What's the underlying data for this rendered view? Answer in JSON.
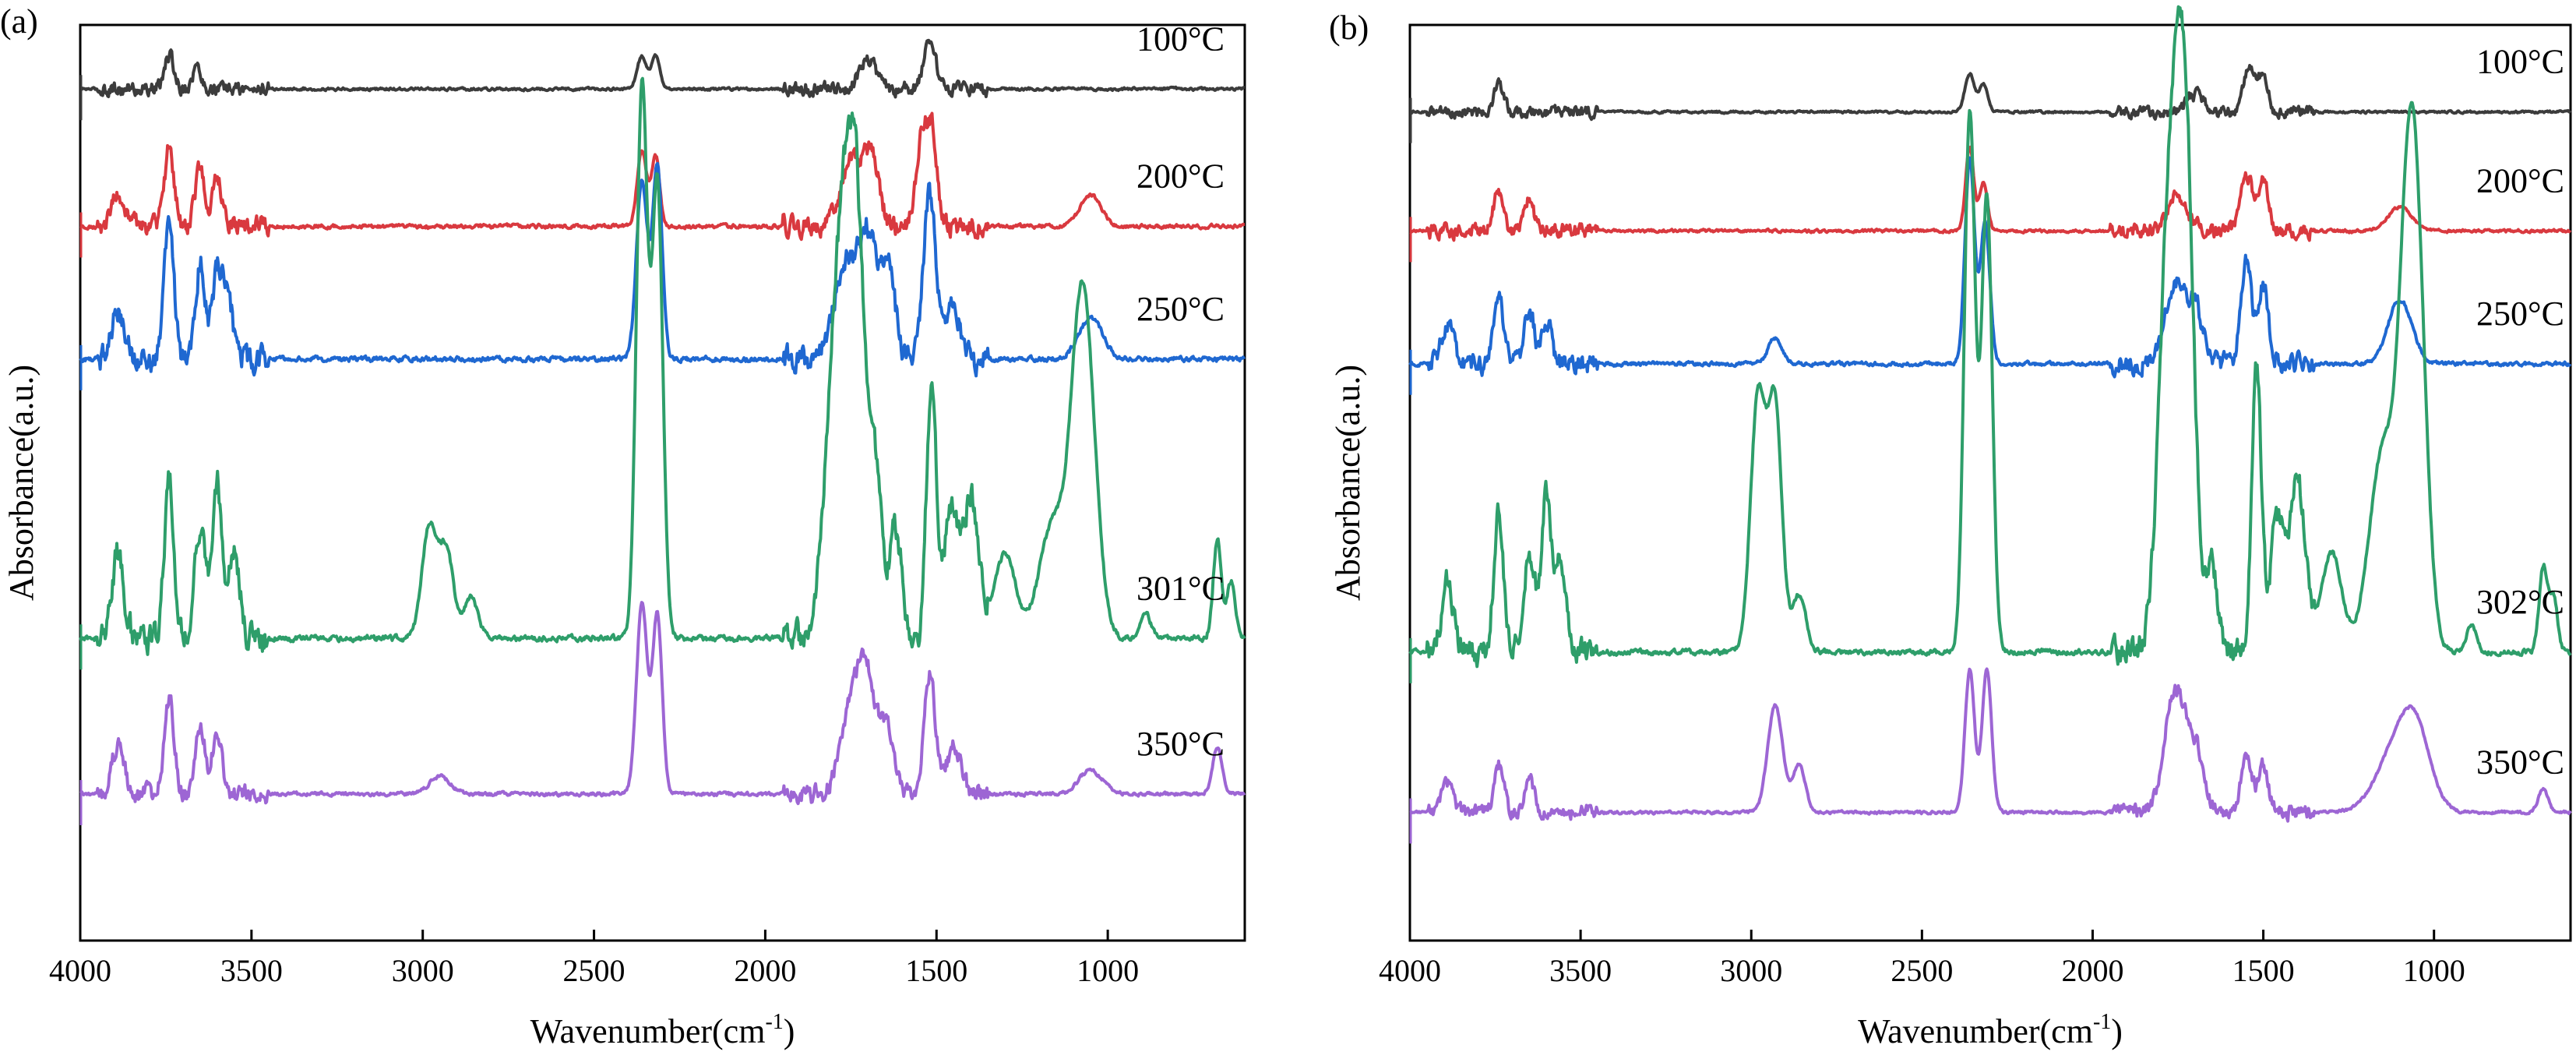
{
  "chart_data": [
    {
      "type": "line",
      "panel_label": "(a)",
      "xlabel": "Wavenumber(cm",
      "xlabel_sup": "-1",
      "xlabel_close": ")",
      "ylabel": "Absorbance(a.u.)",
      "xlim": [
        4000,
        600
      ],
      "xticks": [
        "4000",
        "3500",
        "3000",
        "2500",
        "2000",
        "1500",
        "1000"
      ],
      "xtick_values": [
        4000,
        3500,
        3000,
        2500,
        2000,
        1500,
        1000
      ],
      "yticks": "none",
      "series": [
        {
          "name": "100°C",
          "color": "#3c3c3c",
          "baseline": 0.93,
          "scale": 0.12,
          "noise": 0.12,
          "peaks": [
            [
              3740,
              0.3,
              14
            ],
            [
              3660,
              0.2,
              12
            ],
            [
              2360,
              0.3,
              14
            ],
            [
              2320,
              0.3,
              12
            ],
            [
              1700,
              0.25,
              25
            ],
            [
              1520,
              0.4,
              18
            ]
          ]
        },
        {
          "name": "200°C",
          "color": "#d9393f",
          "baseline": 0.78,
          "scale": 0.14,
          "noise": 0.15,
          "peaks": [
            [
              3890,
              0.25,
              18
            ],
            [
              3740,
              0.6,
              14
            ],
            [
              3650,
              0.45,
              14
            ],
            [
              3600,
              0.35,
              14
            ],
            [
              2360,
              0.6,
              14
            ],
            [
              2320,
              0.55,
              12
            ],
            [
              1750,
              0.5,
              28
            ],
            [
              1690,
              0.55,
              22
            ],
            [
              1540,
              0.7,
              18
            ],
            [
              1510,
              0.6,
              14
            ],
            [
              1050,
              0.25,
              30
            ]
          ]
        },
        {
          "name": "250°C",
          "color": "#1f68d1",
          "baseline": 0.635,
          "scale": 0.15,
          "noise": 0.18,
          "peaks": [
            [
              3890,
              0.35,
              20
            ],
            [
              3740,
              1.0,
              14
            ],
            [
              3650,
              0.7,
              14
            ],
            [
              3600,
              0.65,
              14
            ],
            [
              3570,
              0.5,
              14
            ],
            [
              2360,
              1.3,
              16
            ],
            [
              2315,
              1.4,
              14
            ],
            [
              1770,
              0.7,
              30
            ],
            [
              1700,
              0.9,
              28
            ],
            [
              1640,
              0.6,
              20
            ],
            [
              1520,
              1.2,
              18
            ],
            [
              1450,
              0.4,
              20
            ],
            [
              1050,
              0.3,
              35
            ]
          ]
        },
        {
          "name": "301°C",
          "color": "#2e9e6a",
          "baseline": 0.33,
          "scale": 0.155,
          "noise": 0.2,
          "peaks": [
            [
              3890,
              0.6,
              18
            ],
            [
              3740,
              1.1,
              14
            ],
            [
              3650,
              0.8,
              16
            ],
            [
              3600,
              1.1,
              14
            ],
            [
              3550,
              0.6,
              16
            ],
            [
              2980,
              0.8,
              22
            ],
            [
              2930,
              0.6,
              20
            ],
            [
              2860,
              0.3,
              20
            ],
            [
              2360,
              3.9,
              16
            ],
            [
              2315,
              3.2,
              16
            ],
            [
              1800,
              1.4,
              30
            ],
            [
              1760,
              2.2,
              30
            ],
            [
              1730,
              1.8,
              24
            ],
            [
              1680,
              1.1,
              20
            ],
            [
              1620,
              0.8,
              18
            ],
            [
              1515,
              1.8,
              14
            ],
            [
              1460,
              0.9,
              20
            ],
            [
              1400,
              1.0,
              24
            ],
            [
              1300,
              0.6,
              30
            ],
            [
              1160,
              0.8,
              40
            ],
            [
              1080,
              1.9,
              30
            ],
            [
              1050,
              0.8,
              30
            ],
            [
              890,
              0.2,
              14
            ],
            [
              680,
              0.7,
              12
            ],
            [
              640,
              0.4,
              12
            ]
          ]
        },
        {
          "name": "350°C",
          "color": "#9d66d4",
          "baseline": 0.16,
          "scale": 0.13,
          "noise": 0.15,
          "peaks": [
            [
              3890,
              0.4,
              18
            ],
            [
              3740,
              0.8,
              14
            ],
            [
              3650,
              0.6,
              14
            ],
            [
              3600,
              0.55,
              14
            ],
            [
              2950,
              0.15,
              30
            ],
            [
              2360,
              1.6,
              16
            ],
            [
              2315,
              1.5,
              14
            ],
            [
              1750,
              0.7,
              30
            ],
            [
              1700,
              0.9,
              28
            ],
            [
              1640,
              0.5,
              20
            ],
            [
              1520,
              1.0,
              16
            ],
            [
              1450,
              0.4,
              22
            ],
            [
              1050,
              0.2,
              35
            ],
            [
              680,
              0.4,
              14
            ]
          ]
        }
      ]
    },
    {
      "type": "line",
      "panel_label": "(b)",
      "xlabel": "Wavenumber(cm",
      "xlabel_sup": "-1",
      "xlabel_close": ")",
      "ylabel": "Absorbance(a.u.)",
      "xlim": [
        4000,
        600
      ],
      "xticks": [
        "4000",
        "3500",
        "3000",
        "2500",
        "2000",
        "1500",
        "1000"
      ],
      "xtick_values": [
        4000,
        3500,
        3000,
        2500,
        2000,
        1500,
        1000
      ],
      "yticks": "none",
      "series": [
        {
          "name": "100°C",
          "color": "#3c3c3c",
          "baseline": 0.905,
          "scale": 0.12,
          "noise": 0.1,
          "peaks": [
            [
              3740,
              0.25,
              14
            ],
            [
              2360,
              0.35,
              14
            ],
            [
              2320,
              0.25,
              12
            ],
            [
              1700,
              0.15,
              25
            ],
            [
              1540,
              0.4,
              18
            ],
            [
              1500,
              0.3,
              14
            ]
          ]
        },
        {
          "name": "200°C",
          "color": "#d9393f",
          "baseline": 0.775,
          "scale": 0.13,
          "noise": 0.12,
          "peaks": [
            [
              3740,
              0.35,
              14
            ],
            [
              3650,
              0.25,
              14
            ],
            [
              2360,
              0.7,
              12
            ],
            [
              2320,
              0.4,
              12
            ],
            [
              1750,
              0.3,
              28
            ],
            [
              1550,
              0.5,
              16
            ],
            [
              1500,
              0.4,
              16
            ],
            [
              1100,
              0.2,
              35
            ]
          ]
        },
        {
          "name": "250°C",
          "color": "#1f68d1",
          "baseline": 0.63,
          "scale": 0.14,
          "noise": 0.15,
          "peaks": [
            [
              3890,
              0.3,
              18
            ],
            [
              3740,
              0.55,
              14
            ],
            [
              3650,
              0.4,
              14
            ],
            [
              3600,
              0.35,
              14
            ],
            [
              2930,
              0.2,
              20
            ],
            [
              2360,
              1.6,
              14
            ],
            [
              2315,
              1.1,
              14
            ],
            [
              1760,
              0.6,
              30
            ],
            [
              1700,
              0.4,
              26
            ],
            [
              1550,
              0.8,
              16
            ],
            [
              1500,
              0.6,
              14
            ],
            [
              1100,
              0.5,
              35
            ]
          ]
        },
        {
          "name": "302°C",
          "color": "#2e9e6a",
          "baseline": 0.315,
          "scale": 0.155,
          "noise": 0.18,
          "peaks": [
            [
              3890,
              0.5,
              18
            ],
            [
              3740,
              1.0,
              14
            ],
            [
              3650,
              0.7,
              16
            ],
            [
              3600,
              1.1,
              14
            ],
            [
              3560,
              0.6,
              16
            ],
            [
              2980,
              1.8,
              22
            ],
            [
              2930,
              1.7,
              20
            ],
            [
              2860,
              0.4,
              20
            ],
            [
              2360,
              3.8,
              16
            ],
            [
              2310,
              3.2,
              16
            ],
            [
              1790,
              1.4,
              26
            ],
            [
              1750,
              3.4,
              30
            ],
            [
              1720,
              1.6,
              22
            ],
            [
              1650,
              0.6,
              18
            ],
            [
              1520,
              2.0,
              14
            ],
            [
              1460,
              0.9,
              20
            ],
            [
              1400,
              1.2,
              24
            ],
            [
              1300,
              0.7,
              30
            ],
            [
              1150,
              1.4,
              40
            ],
            [
              1070,
              3.1,
              30
            ],
            [
              1040,
              1.0,
              28
            ],
            [
              890,
              0.2,
              14
            ],
            [
              680,
              0.6,
              12
            ],
            [
              650,
              0.4,
              12
            ]
          ]
        },
        {
          "name": "350°C",
          "color": "#9d66d4",
          "baseline": 0.14,
          "scale": 0.13,
          "noise": 0.12,
          "peaks": [
            [
              3890,
              0.25,
              18
            ],
            [
              3740,
              0.4,
              14
            ],
            [
              3650,
              0.3,
              14
            ],
            [
              2930,
              0.9,
              22
            ],
            [
              2860,
              0.4,
              18
            ],
            [
              2360,
              1.2,
              14
            ],
            [
              2310,
              1.2,
              14
            ],
            [
              1760,
              1.0,
              30
            ],
            [
              1700,
              0.5,
              26
            ],
            [
              1550,
              0.5,
              16
            ],
            [
              1500,
              0.4,
              14
            ],
            [
              1100,
              0.6,
              60
            ],
            [
              1050,
              0.4,
              40
            ],
            [
              680,
              0.2,
              14
            ]
          ]
        }
      ]
    }
  ]
}
